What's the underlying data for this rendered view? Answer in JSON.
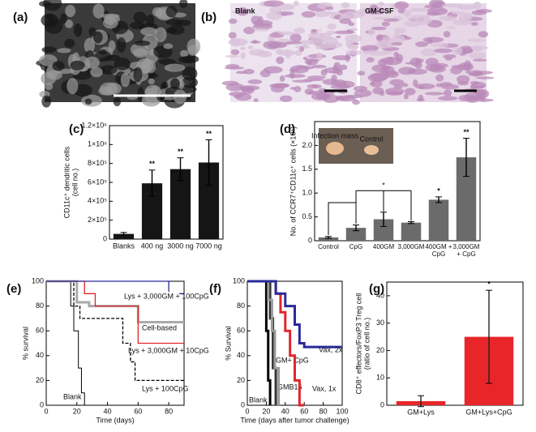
{
  "images": {
    "a": {
      "panel_label": "(a)"
    },
    "b": {
      "panel_label": "(b)",
      "captions": [
        "Blank",
        "GM-CSF"
      ]
    }
  },
  "chart_data": [
    {
      "type": "bar",
      "panel_label": "(c)",
      "ylabel": [
        "CD11c⁺ dendritic cells",
        "(cell no.)"
      ],
      "categories": [
        "Blanks",
        "400 ng",
        "3000 ng",
        "7000 ng"
      ],
      "values": [
        55000,
        590000,
        740000,
        810000
      ],
      "errors": [
        15000,
        140000,
        120000,
        240000
      ],
      "significance": [
        null,
        "**",
        "**",
        "**"
      ],
      "color": "#151515",
      "ylim": [
        0,
        1200000
      ],
      "yticks": [
        {
          "value": 0,
          "label": "0"
        },
        {
          "value": 200000,
          "label": "2×10⁵"
        },
        {
          "value": 400000,
          "label": "4×10⁵"
        },
        {
          "value": 600000,
          "label": "6×10⁵"
        },
        {
          "value": 800000,
          "label": "8×10⁵"
        },
        {
          "value": 1000000,
          "label": "1×10⁶"
        },
        {
          "value": 1200000,
          "label": "1.2×10⁶"
        }
      ]
    },
    {
      "type": "bar",
      "panel_label": "(d)",
      "ylabel": [
        "No. of CCR7⁺CD11c⁺ cells (×10⁵)"
      ],
      "categories": [
        "Control",
        "CpG",
        "400GM",
        "3,000GM",
        "400GM + CpG",
        "3,000GM + CpG"
      ],
      "values": [
        0.07,
        0.27,
        0.45,
        0.38,
        0.86,
        1.75
      ],
      "errors": [
        0.02,
        0.06,
        0.15,
        0.02,
        0.06,
        0.4
      ],
      "significance": [
        null,
        null,
        null,
        null,
        "*",
        "**"
      ],
      "bracket_label": "*",
      "inset_labels": [
        "Infection mass",
        "Control"
      ],
      "color": "#6b6b6b",
      "ylim": [
        0,
        2.5
      ],
      "yticks": [
        0,
        0.5,
        {
          "value": 1,
          "label": "1.0"
        },
        1.5,
        {
          "value": 2,
          "label": "2.0"
        }
      ]
    },
    {
      "type": "line",
      "panel_label": "(e)",
      "ylabel": [
        "% survival"
      ],
      "xlabel": "Time (days)",
      "xlim": [
        0,
        90
      ],
      "xticks": [
        0,
        20,
        40,
        60,
        80
      ],
      "ylim": [
        0,
        100
      ],
      "yticks": [
        0,
        20,
        40,
        60,
        80,
        100
      ],
      "series": [
        {
          "name": "Blank",
          "color": "#000000",
          "width": 1,
          "x": [
            0,
            16,
            16,
            18,
            18,
            21,
            21,
            23,
            23,
            25,
            25
          ],
          "values": [
            100,
            100,
            80,
            80,
            60,
            60,
            30,
            30,
            10,
            10,
            0
          ]
        },
        {
          "name": "Lys + 100CpG",
          "color": "#000000",
          "dash": true,
          "width": 1.3,
          "x": [
            0,
            18,
            18,
            22,
            22,
            50,
            50,
            55,
            55,
            58,
            58,
            90
          ],
          "values": [
            100,
            100,
            80,
            80,
            70,
            70,
            50,
            50,
            35,
            35,
            20,
            20
          ]
        },
        {
          "name": "Cell-based",
          "color": "#aaaaaa",
          "width": 3,
          "x": [
            0,
            20,
            20,
            28,
            28,
            60,
            60,
            90
          ],
          "values": [
            100,
            100,
            83,
            83,
            80,
            80,
            67,
            67
          ]
        },
        {
          "name": "Lys + 3,000GM + 10CpG",
          "color": "#e0262a",
          "width": 1.3,
          "x": [
            0,
            25,
            25,
            32,
            32,
            60,
            60,
            90
          ],
          "values": [
            100,
            100,
            90,
            90,
            80,
            80,
            50,
            50
          ]
        },
        {
          "name": "Lys + 3,000GM + 100CpG",
          "color": "#2a2a9a",
          "width": 1.3,
          "x": [
            0,
            80,
            80,
            90
          ],
          "values": [
            100,
            100,
            90,
            90
          ]
        }
      ]
    },
    {
      "type": "line",
      "panel_label": "(f)",
      "ylabel": [
        "% Survival"
      ],
      "xlabel": "Time (days after tumor challenge)",
      "xlim": [
        0,
        100
      ],
      "xticks": [
        0,
        20,
        40,
        60,
        80,
        100
      ],
      "ylim": [
        0,
        100
      ],
      "yticks": [
        0,
        20,
        40,
        60,
        80,
        100
      ],
      "series": [
        {
          "name": "Blank",
          "color": "#000000",
          "width": 3,
          "x": [
            0,
            20,
            20,
            22,
            22,
            24,
            24
          ],
          "values": [
            100,
            100,
            60,
            60,
            20,
            20,
            0
          ]
        },
        {
          "name": "GMB16",
          "color": "#333333",
          "width": 3,
          "x": [
            0,
            24,
            24,
            27,
            27,
            30,
            30
          ],
          "values": [
            100,
            100,
            70,
            70,
            30,
            30,
            0
          ]
        },
        {
          "name": "GM+ CpG",
          "color": "#9a9a9a",
          "width": 3,
          "x": [
            0,
            22,
            22,
            26,
            26,
            29,
            29,
            33,
            33
          ],
          "values": [
            100,
            100,
            85,
            85,
            60,
            60,
            30,
            30,
            0
          ]
        },
        {
          "name": "Vax, 1x",
          "color": "#e0262a",
          "width": 3,
          "x": [
            0,
            30,
            30,
            35,
            35,
            40,
            40,
            45,
            45,
            50,
            50,
            55,
            55,
            60
          ],
          "values": [
            100,
            100,
            90,
            90,
            75,
            75,
            60,
            60,
            40,
            40,
            20,
            20,
            0,
            0
          ]
        },
        {
          "name": "Vax, 2x",
          "color": "#2a2a9a",
          "width": 3,
          "x": [
            0,
            30,
            30,
            40,
            40,
            50,
            50,
            55,
            55,
            60,
            60,
            100
          ],
          "values": [
            100,
            100,
            90,
            90,
            80,
            80,
            65,
            65,
            50,
            50,
            47,
            47
          ]
        }
      ]
    },
    {
      "type": "bar",
      "panel_label": "(g)",
      "ylabel": [
        "CD8⁺ effectors/FoxP3 Treg cell",
        "(ratio of cell no.)"
      ],
      "categories": [
        "GM+Lys",
        "GM+Lys+CpG"
      ],
      "values": [
        1.5,
        25
      ],
      "errors": [
        2,
        17
      ],
      "significance": [
        null,
        "*"
      ],
      "color": "#e8262a",
      "ylim": [
        0,
        45
      ],
      "yticks": [
        0,
        10,
        20,
        30,
        40
      ]
    }
  ]
}
